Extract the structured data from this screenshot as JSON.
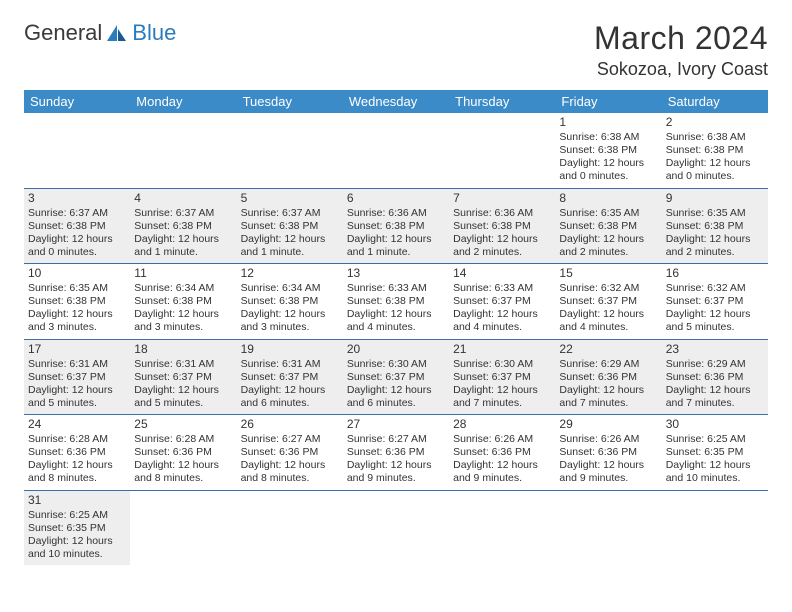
{
  "logo": {
    "text1": "General",
    "text2": "Blue"
  },
  "title": "March 2024",
  "location": "Sokozoa, Ivory Coast",
  "colors": {
    "header_bg": "#3b8bc8",
    "header_text": "#ffffff",
    "row_border": "#3b6fa8",
    "shaded_row": "#eeeeee",
    "text": "#333333",
    "logo_blue": "#2b7bbf"
  },
  "dayHeaders": [
    "Sunday",
    "Monday",
    "Tuesday",
    "Wednesday",
    "Thursday",
    "Friday",
    "Saturday"
  ],
  "weeks": [
    {
      "shaded": false,
      "days": [
        null,
        null,
        null,
        null,
        null,
        {
          "n": "1",
          "sr": "Sunrise: 6:38 AM",
          "ss": "Sunset: 6:38 PM",
          "dl": "Daylight: 12 hours and 0 minutes."
        },
        {
          "n": "2",
          "sr": "Sunrise: 6:38 AM",
          "ss": "Sunset: 6:38 PM",
          "dl": "Daylight: 12 hours and 0 minutes."
        }
      ]
    },
    {
      "shaded": true,
      "days": [
        {
          "n": "3",
          "sr": "Sunrise: 6:37 AM",
          "ss": "Sunset: 6:38 PM",
          "dl": "Daylight: 12 hours and 0 minutes."
        },
        {
          "n": "4",
          "sr": "Sunrise: 6:37 AM",
          "ss": "Sunset: 6:38 PM",
          "dl": "Daylight: 12 hours and 1 minute."
        },
        {
          "n": "5",
          "sr": "Sunrise: 6:37 AM",
          "ss": "Sunset: 6:38 PM",
          "dl": "Daylight: 12 hours and 1 minute."
        },
        {
          "n": "6",
          "sr": "Sunrise: 6:36 AM",
          "ss": "Sunset: 6:38 PM",
          "dl": "Daylight: 12 hours and 1 minute."
        },
        {
          "n": "7",
          "sr": "Sunrise: 6:36 AM",
          "ss": "Sunset: 6:38 PM",
          "dl": "Daylight: 12 hours and 2 minutes."
        },
        {
          "n": "8",
          "sr": "Sunrise: 6:35 AM",
          "ss": "Sunset: 6:38 PM",
          "dl": "Daylight: 12 hours and 2 minutes."
        },
        {
          "n": "9",
          "sr": "Sunrise: 6:35 AM",
          "ss": "Sunset: 6:38 PM",
          "dl": "Daylight: 12 hours and 2 minutes."
        }
      ]
    },
    {
      "shaded": false,
      "days": [
        {
          "n": "10",
          "sr": "Sunrise: 6:35 AM",
          "ss": "Sunset: 6:38 PM",
          "dl": "Daylight: 12 hours and 3 minutes."
        },
        {
          "n": "11",
          "sr": "Sunrise: 6:34 AM",
          "ss": "Sunset: 6:38 PM",
          "dl": "Daylight: 12 hours and 3 minutes."
        },
        {
          "n": "12",
          "sr": "Sunrise: 6:34 AM",
          "ss": "Sunset: 6:38 PM",
          "dl": "Daylight: 12 hours and 3 minutes."
        },
        {
          "n": "13",
          "sr": "Sunrise: 6:33 AM",
          "ss": "Sunset: 6:38 PM",
          "dl": "Daylight: 12 hours and 4 minutes."
        },
        {
          "n": "14",
          "sr": "Sunrise: 6:33 AM",
          "ss": "Sunset: 6:37 PM",
          "dl": "Daylight: 12 hours and 4 minutes."
        },
        {
          "n": "15",
          "sr": "Sunrise: 6:32 AM",
          "ss": "Sunset: 6:37 PM",
          "dl": "Daylight: 12 hours and 4 minutes."
        },
        {
          "n": "16",
          "sr": "Sunrise: 6:32 AM",
          "ss": "Sunset: 6:37 PM",
          "dl": "Daylight: 12 hours and 5 minutes."
        }
      ]
    },
    {
      "shaded": true,
      "days": [
        {
          "n": "17",
          "sr": "Sunrise: 6:31 AM",
          "ss": "Sunset: 6:37 PM",
          "dl": "Daylight: 12 hours and 5 minutes."
        },
        {
          "n": "18",
          "sr": "Sunrise: 6:31 AM",
          "ss": "Sunset: 6:37 PM",
          "dl": "Daylight: 12 hours and 5 minutes."
        },
        {
          "n": "19",
          "sr": "Sunrise: 6:31 AM",
          "ss": "Sunset: 6:37 PM",
          "dl": "Daylight: 12 hours and 6 minutes."
        },
        {
          "n": "20",
          "sr": "Sunrise: 6:30 AM",
          "ss": "Sunset: 6:37 PM",
          "dl": "Daylight: 12 hours and 6 minutes."
        },
        {
          "n": "21",
          "sr": "Sunrise: 6:30 AM",
          "ss": "Sunset: 6:37 PM",
          "dl": "Daylight: 12 hours and 7 minutes."
        },
        {
          "n": "22",
          "sr": "Sunrise: 6:29 AM",
          "ss": "Sunset: 6:36 PM",
          "dl": "Daylight: 12 hours and 7 minutes."
        },
        {
          "n": "23",
          "sr": "Sunrise: 6:29 AM",
          "ss": "Sunset: 6:36 PM",
          "dl": "Daylight: 12 hours and 7 minutes."
        }
      ]
    },
    {
      "shaded": false,
      "days": [
        {
          "n": "24",
          "sr": "Sunrise: 6:28 AM",
          "ss": "Sunset: 6:36 PM",
          "dl": "Daylight: 12 hours and 8 minutes."
        },
        {
          "n": "25",
          "sr": "Sunrise: 6:28 AM",
          "ss": "Sunset: 6:36 PM",
          "dl": "Daylight: 12 hours and 8 minutes."
        },
        {
          "n": "26",
          "sr": "Sunrise: 6:27 AM",
          "ss": "Sunset: 6:36 PM",
          "dl": "Daylight: 12 hours and 8 minutes."
        },
        {
          "n": "27",
          "sr": "Sunrise: 6:27 AM",
          "ss": "Sunset: 6:36 PM",
          "dl": "Daylight: 12 hours and 9 minutes."
        },
        {
          "n": "28",
          "sr": "Sunrise: 6:26 AM",
          "ss": "Sunset: 6:36 PM",
          "dl": "Daylight: 12 hours and 9 minutes."
        },
        {
          "n": "29",
          "sr": "Sunrise: 6:26 AM",
          "ss": "Sunset: 6:36 PM",
          "dl": "Daylight: 12 hours and 9 minutes."
        },
        {
          "n": "30",
          "sr": "Sunrise: 6:25 AM",
          "ss": "Sunset: 6:35 PM",
          "dl": "Daylight: 12 hours and 10 minutes."
        }
      ]
    },
    {
      "shaded": true,
      "days": [
        {
          "n": "31",
          "sr": "Sunrise: 6:25 AM",
          "ss": "Sunset: 6:35 PM",
          "dl": "Daylight: 12 hours and 10 minutes."
        },
        null,
        null,
        null,
        null,
        null,
        null
      ]
    }
  ]
}
